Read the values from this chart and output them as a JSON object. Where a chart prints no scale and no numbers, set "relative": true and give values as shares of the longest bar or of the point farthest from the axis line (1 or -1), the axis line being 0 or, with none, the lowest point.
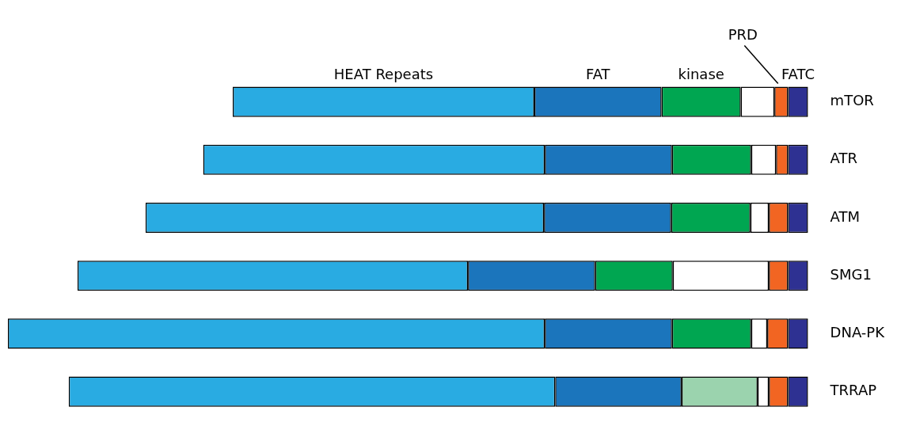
{
  "chart_data": {
    "type": "bar",
    "orientation": "horizontal",
    "stacked": true,
    "relative": true,
    "legend": false,
    "categories": [
      "mTOR",
      "ATR",
      "ATM",
      "SMG1",
      "DNA-PK",
      "TRRAP"
    ],
    "series": [
      {
        "name": "FATC",
        "color": "#2e3192",
        "values": [
          -0.025,
          -0.025,
          -0.025,
          -0.025,
          -0.025,
          -0.025
        ]
      },
      {
        "name": "PRD",
        "color": "#f26522",
        "values": [
          -0.017,
          -0.015,
          -0.024,
          -0.024,
          -0.026,
          -0.024
        ]
      },
      {
        "color": "#ffffff",
        "values": [
          -0.042,
          -0.031,
          -0.023,
          -0.12,
          -0.02,
          -0.014
        ]
      },
      {
        "name": "kinase",
        "colors": [
          "#00a651",
          "#00a651",
          "#00a651",
          "#00a651",
          "#00a651",
          "#9bd3ae"
        ],
        "values": [
          -0.099,
          -0.099,
          -0.099,
          -0.097,
          -0.099,
          -0.095
        ]
      },
      {
        "name": "FAT",
        "color": "#1b75bc",
        "values": [
          -0.159,
          -0.159,
          -0.159,
          -0.159,
          -0.159,
          -0.158
        ]
      },
      {
        "name": "HEAT Repeats",
        "color": "#29abe2",
        "values": [
          -0.377,
          -0.427,
          -0.498,
          -0.488,
          -0.671,
          -0.608
        ]
      }
    ]
  }
}
